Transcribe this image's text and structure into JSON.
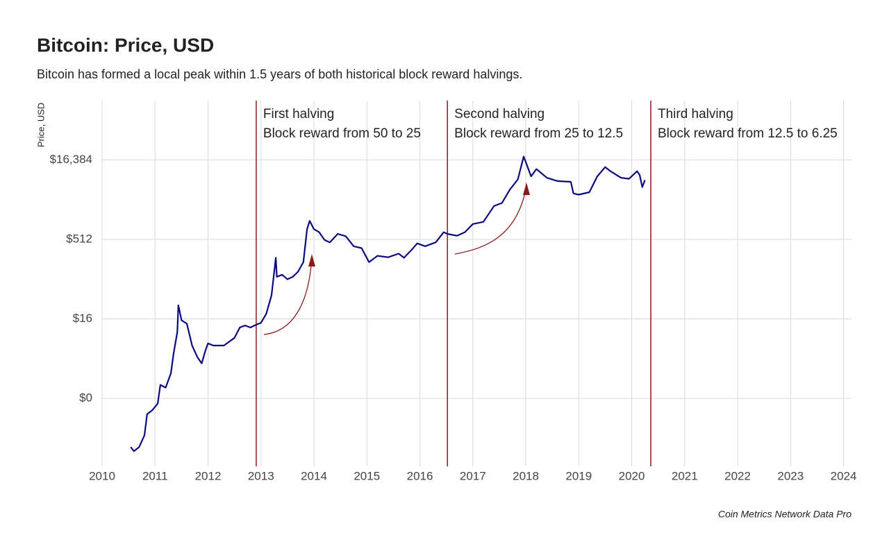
{
  "chart_data": {
    "type": "line",
    "title": "Bitcoin: Price, USD",
    "subtitle": "Bitcoin has formed a local peak within 1.5 years of both historical block reward halvings.",
    "y_label": "Price, USD",
    "source": "Coin Metrics Network Data Pro",
    "y_scale": "log",
    "grid": true,
    "color": "#0a0a80",
    "xlim": [
      2010,
      2024.15
    ],
    "xticks": [
      2010,
      2011,
      2012,
      2013,
      2014,
      2015,
      2016,
      2017,
      2018,
      2019,
      2020,
      2021,
      2022,
      2023,
      2024
    ],
    "ylim": [
      0.0258,
      217000
    ],
    "yticks": [
      {
        "value": 0.5,
        "label": "$0"
      },
      {
        "value": 16,
        "label": "$16"
      },
      {
        "value": 512,
        "label": "$512"
      },
      {
        "value": 16384,
        "label": "$16,384"
      }
    ],
    "annotations": [
      {
        "x": 2012.91,
        "color": "#8b1a1a",
        "lines": [
          "First halving",
          "Block reward from 50 to 25"
        ]
      },
      {
        "x": 2016.52,
        "color": "#8b1a1a",
        "lines": [
          "Second halving",
          "Block reward from 25 to 12.5"
        ]
      },
      {
        "x": 2020.36,
        "color": "#8b1a1a",
        "lines": [
          "Third halving",
          "Block reward from 12.5 to 6.25"
        ]
      }
    ],
    "x": [
      2010.54,
      2010.6,
      2010.7,
      2010.8,
      2010.85,
      2010.95,
      2011.05,
      2011.1,
      2011.2,
      2011.3,
      2011.35,
      2011.42,
      2011.44,
      2011.5,
      2011.6,
      2011.7,
      2011.8,
      2011.88,
      2011.95,
      2012.0,
      2012.1,
      2012.3,
      2012.5,
      2012.6,
      2012.7,
      2012.8,
      2012.9,
      2013.0,
      2013.1,
      2013.2,
      2013.28,
      2013.3,
      2013.4,
      2013.5,
      2013.6,
      2013.7,
      2013.8,
      2013.87,
      2013.92,
      2014.0,
      2014.1,
      2014.2,
      2014.3,
      2014.45,
      2014.6,
      2014.75,
      2014.9,
      2015.04,
      2015.2,
      2015.4,
      2015.6,
      2015.7,
      2015.85,
      2015.95,
      2016.1,
      2016.3,
      2016.45,
      2016.52,
      2016.7,
      2016.85,
      2017.0,
      2017.2,
      2017.4,
      2017.55,
      2017.7,
      2017.85,
      2017.96,
      2018.1,
      2018.2,
      2018.4,
      2018.6,
      2018.85,
      2018.9,
      2019.0,
      2019.2,
      2019.35,
      2019.5,
      2019.6,
      2019.8,
      2019.95,
      2020.1,
      2020.15,
      2020.2,
      2020.25
    ],
    "values": [
      0.06,
      0.05,
      0.06,
      0.1,
      0.25,
      0.3,
      0.4,
      0.9,
      0.8,
      1.5,
      3.5,
      9,
      29,
      15,
      13,
      5,
      3,
      2.3,
      4,
      5.5,
      5,
      5,
      7,
      11,
      12,
      11,
      12.3,
      13.5,
      20,
      45,
      230,
      100,
      110,
      90,
      100,
      125,
      190,
      800,
      1150,
      800,
      700,
      500,
      450,
      650,
      590,
      380,
      350,
      190,
      250,
      235,
      275,
      230,
      330,
      430,
      380,
      450,
      700,
      650,
      600,
      700,
      1000,
      1100,
      2200,
      2500,
      4500,
      7000,
      19000,
      8000,
      11000,
      7500,
      6500,
      6300,
      3800,
      3600,
      4000,
      8000,
      12000,
      10000,
      7500,
      7200,
      10000,
      8500,
      5000,
      6800
    ]
  }
}
